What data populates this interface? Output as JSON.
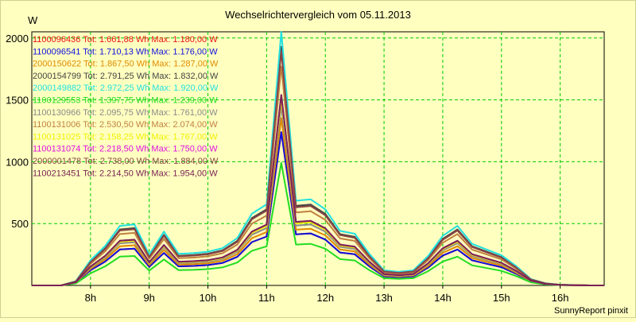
{
  "chart_data": {
    "type": "line",
    "title": "Wechselrichtervergleich vom 05.11.2013",
    "ylabel": "W",
    "xlabel": "",
    "footer": "SunnyReport pinxit",
    "ylim": [
      0,
      2050
    ],
    "xlim": [
      7.0,
      16.75
    ],
    "grid": true,
    "yticks": [
      500,
      1000,
      1500,
      2000
    ],
    "xticks": [
      {
        "value": 8,
        "label": "8h"
      },
      {
        "value": 9,
        "label": "9h"
      },
      {
        "value": 10,
        "label": "10h"
      },
      {
        "value": 11,
        "label": "11h"
      },
      {
        "value": 12,
        "label": "12h"
      },
      {
        "value": 13,
        "label": "13h"
      },
      {
        "value": 14,
        "label": "14h"
      },
      {
        "value": 15,
        "label": "15h"
      },
      {
        "value": 16,
        "label": "16h"
      }
    ],
    "x": [
      7.0,
      7.25,
      7.5,
      7.75,
      8.0,
      8.25,
      8.5,
      8.75,
      9.0,
      9.25,
      9.5,
      9.75,
      10.0,
      10.25,
      10.5,
      10.75,
      11.0,
      11.25,
      11.5,
      11.75,
      12.0,
      12.25,
      12.5,
      12.75,
      13.0,
      13.25,
      13.5,
      13.75,
      14.0,
      14.25,
      14.5,
      14.75,
      15.0,
      15.25,
      15.5,
      15.75,
      16.0,
      16.25,
      16.5,
      16.75
    ],
    "base_shape": [
      0,
      0,
      0,
      0.06,
      0.35,
      0.55,
      0.83,
      0.85,
      0.43,
      0.75,
      0.44,
      0.45,
      0.47,
      0.52,
      0.66,
      1.0,
      1.13,
      3.54,
      1.18,
      1.2,
      1.06,
      0.76,
      0.72,
      0.44,
      0.21,
      0.19,
      0.21,
      0.41,
      0.69,
      0.83,
      0.58,
      0.5,
      0.42,
      0.27,
      0.09,
      0.03,
      0.01,
      0.005,
      0,
      0
    ],
    "series": [
      {
        "name": "1100096436",
        "legend": "1100096436 Tot: 1.661,88 Wh Max: 1.180,00 W",
        "color": "#ee1111",
        "scale": 350
      },
      {
        "name": "1100096541",
        "legend": "1100096541 Tot: 1.710,13 Wh Max: 1.176,00 W",
        "color": "#1010dd",
        "scale": 350
      },
      {
        "name": "2000150622",
        "legend": "2000150622 Tot: 1.867,50 Wh Max: 1.287,00 W",
        "color": "#e08a00",
        "scale": 382
      },
      {
        "name": "2000154799",
        "legend": "2000154799 Tot: 2.791,25 Wh Max: 1.832,00 W",
        "color": "#444444",
        "scale": 545
      },
      {
        "name": "2000149882",
        "legend": "2000149882 Tot: 2.972,25 Wh Max: 1.920,00 W",
        "color": "#20e0e0",
        "scale": 580
      },
      {
        "name": "1100129553",
        "legend": "1100129553 Tot: 1.397,75 Wh Max: 1.239,00 W",
        "color": "#22dd22",
        "scale": 280
      },
      {
        "name": "1100130966",
        "legend": "1100130966 Tot: 2.095,75 Wh Max: 1.761,00 W",
        "color": "#8a8a8a",
        "scale": 410
      },
      {
        "name": "1100131006",
        "legend": "1100131006 Tot: 2.530,50 Wh Max: 2.074,00 W",
        "color": "#c08040",
        "scale": 500
      },
      {
        "name": "1100131025",
        "legend": "1100131025 Tot: 2.158,25 Wh Max: 1.767,00 W",
        "color": "#f0f000",
        "scale": 425
      },
      {
        "name": "1100131074",
        "legend": "1100131074 Tot: 2.218,50 Wh Max: 1.750,00 W",
        "color": "#e010e0",
        "scale": 435
      },
      {
        "name": "2000001478",
        "legend": "2000001478 Tot: 2.738,00 Wh Max: 1.884,00 W",
        "color": "#884444",
        "scale": 535
      },
      {
        "name": "1100213451",
        "legend": "1100213451 Tot: 2.214,50 Wh Max: 1.954,00 W",
        "color": "#7a2255",
        "scale": 435
      }
    ]
  }
}
